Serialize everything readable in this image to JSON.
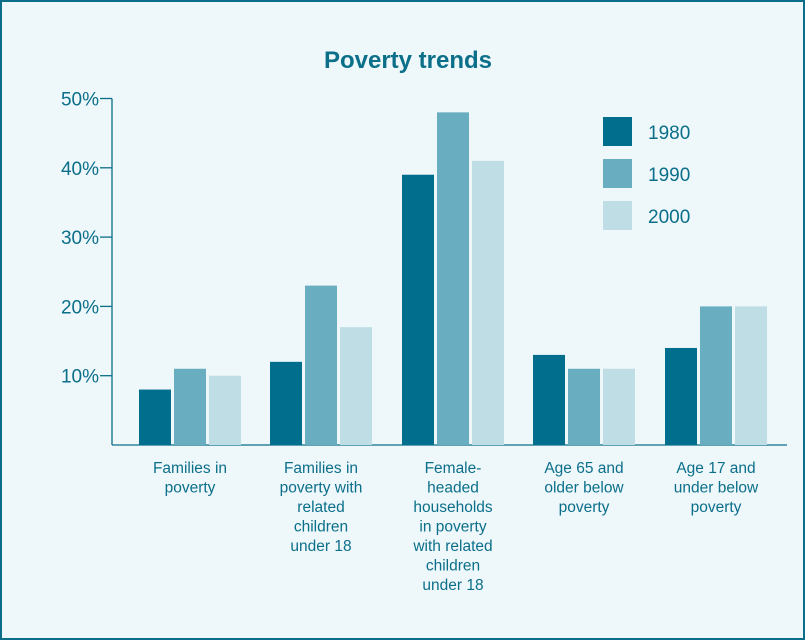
{
  "chart_data": {
    "type": "bar",
    "title": "Poverty trends",
    "xlabel": "",
    "ylabel": "",
    "ylim": [
      0,
      50
    ],
    "yticks": [
      "10%",
      "20%",
      "30%",
      "40%",
      "50%"
    ],
    "ytick_values": [
      10,
      20,
      30,
      40,
      50
    ],
    "grid": false,
    "legend_position": "top-right",
    "categories": [
      [
        "Families in",
        "poverty"
      ],
      [
        "Families in",
        "poverty with",
        "related",
        "children",
        "under 18"
      ],
      [
        "Female-",
        "headed",
        "households",
        "in poverty",
        "with related",
        "children",
        "under 18"
      ],
      [
        "Age 65 and",
        "older below",
        "poverty"
      ],
      [
        "Age 17 and",
        "under below",
        "poverty"
      ]
    ],
    "series": [
      {
        "name": "1980",
        "color": "#006e8c",
        "values": [
          8,
          12,
          39,
          13,
          14
        ]
      },
      {
        "name": "1990",
        "color": "#68aec0",
        "values": [
          11,
          23,
          48,
          11,
          20
        ]
      },
      {
        "name": "2000",
        "color": "#bedde5",
        "values": [
          10,
          17,
          41,
          11,
          20
        ]
      }
    ]
  }
}
